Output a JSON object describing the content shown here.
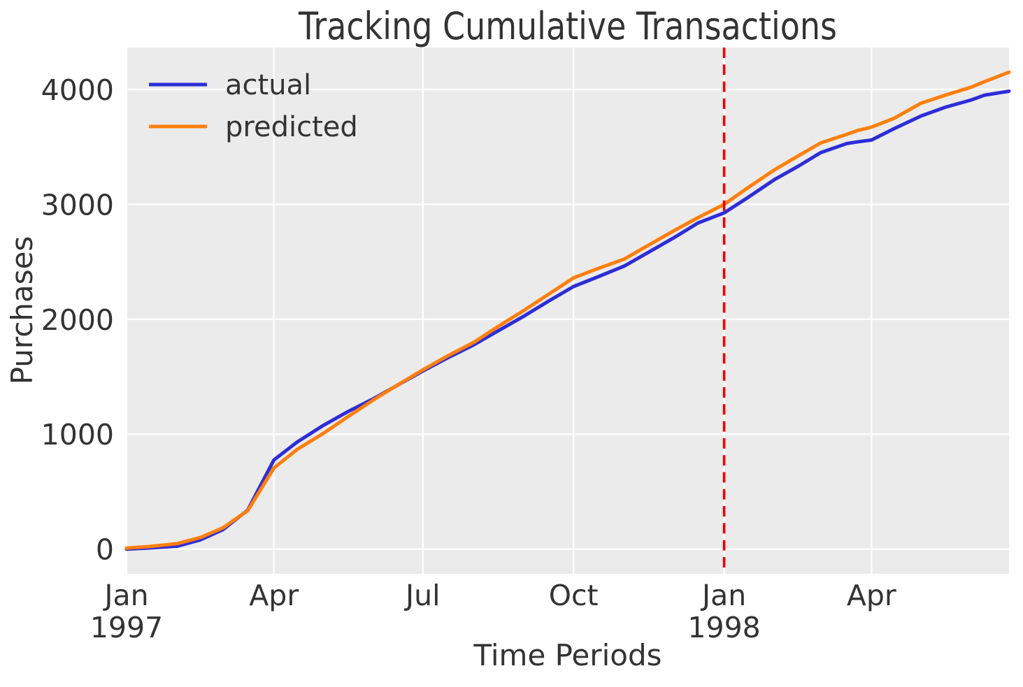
{
  "title": "Tracking Cumulative Transactions",
  "axes": {
    "xlabel": "Time Periods",
    "ylabel": "Purchases"
  },
  "legend": {
    "items": [
      {
        "label": "actual",
        "color": "#2d2dd8"
      },
      {
        "label": "predicted",
        "color": "#ff7f0e"
      }
    ]
  },
  "colors": {
    "plot_background": "#ebebeb",
    "grid": "#ffffff",
    "actual": "#2d2dd8",
    "predicted": "#ff7f0e",
    "boundary_line": "#ec0000",
    "text": "#333333"
  },
  "chart_data": {
    "type": "line",
    "title": "Tracking Cumulative Transactions",
    "xlabel": "Time Periods",
    "ylabel": "Purchases",
    "x_unit": "days since 1997-01-01 (weekly cumulative transaction counts)",
    "x": [
      0,
      14,
      31,
      45,
      59,
      74,
      90,
      104,
      120,
      135,
      151,
      166,
      181,
      196,
      212,
      227,
      243,
      258,
      273,
      288,
      304,
      319,
      334,
      349,
      365,
      379,
      396,
      410,
      424,
      440,
      447,
      455,
      469,
      485,
      500,
      516,
      524,
      539
    ],
    "series": [
      {
        "name": "actual",
        "color": "#2d2dd8",
        "values": [
          0,
          10,
          25,
          80,
          170,
          340,
          775,
          930,
          1075,
          1195,
          1310,
          1430,
          1550,
          1663,
          1777,
          1900,
          2030,
          2160,
          2285,
          2370,
          2463,
          2585,
          2707,
          2838,
          2926,
          3055,
          3218,
          3330,
          3450,
          3530,
          3545,
          3560,
          3660,
          3768,
          3845,
          3909,
          3950,
          3985
        ]
      },
      {
        "name": "predicted",
        "color": "#ff7f0e",
        "values": [
          8,
          22,
          48,
          100,
          185,
          335,
          705,
          865,
          1005,
          1150,
          1300,
          1432,
          1560,
          1680,
          1798,
          1938,
          2080,
          2220,
          2360,
          2442,
          2524,
          2646,
          2768,
          2884,
          3000,
          3140,
          3303,
          3420,
          3535,
          3610,
          3645,
          3672,
          3750,
          3879,
          3950,
          4020,
          4068,
          4150
        ]
      },
      {
        "name": "calibration-boundary",
        "color": "#ec0000",
        "style": "dashed-vertical",
        "x_day": 365,
        "date": "1998-01-01"
      }
    ],
    "x_ticks": [
      {
        "day": 0,
        "label": "Jan",
        "sublabel": "1997"
      },
      {
        "day": 90,
        "label": "Apr",
        "sublabel": ""
      },
      {
        "day": 181,
        "label": "Jul",
        "sublabel": ""
      },
      {
        "day": 273,
        "label": "Oct",
        "sublabel": ""
      },
      {
        "day": 365,
        "label": "Jan",
        "sublabel": "1998"
      },
      {
        "day": 455,
        "label": "Apr",
        "sublabel": ""
      }
    ],
    "y_ticks": [
      0,
      1000,
      2000,
      3000,
      4000
    ],
    "xlim_days": [
      0,
      539
    ],
    "ylim": [
      -215,
      4365
    ],
    "grid": true,
    "legend_position": "upper left",
    "plot_background": "#ebebeb"
  }
}
